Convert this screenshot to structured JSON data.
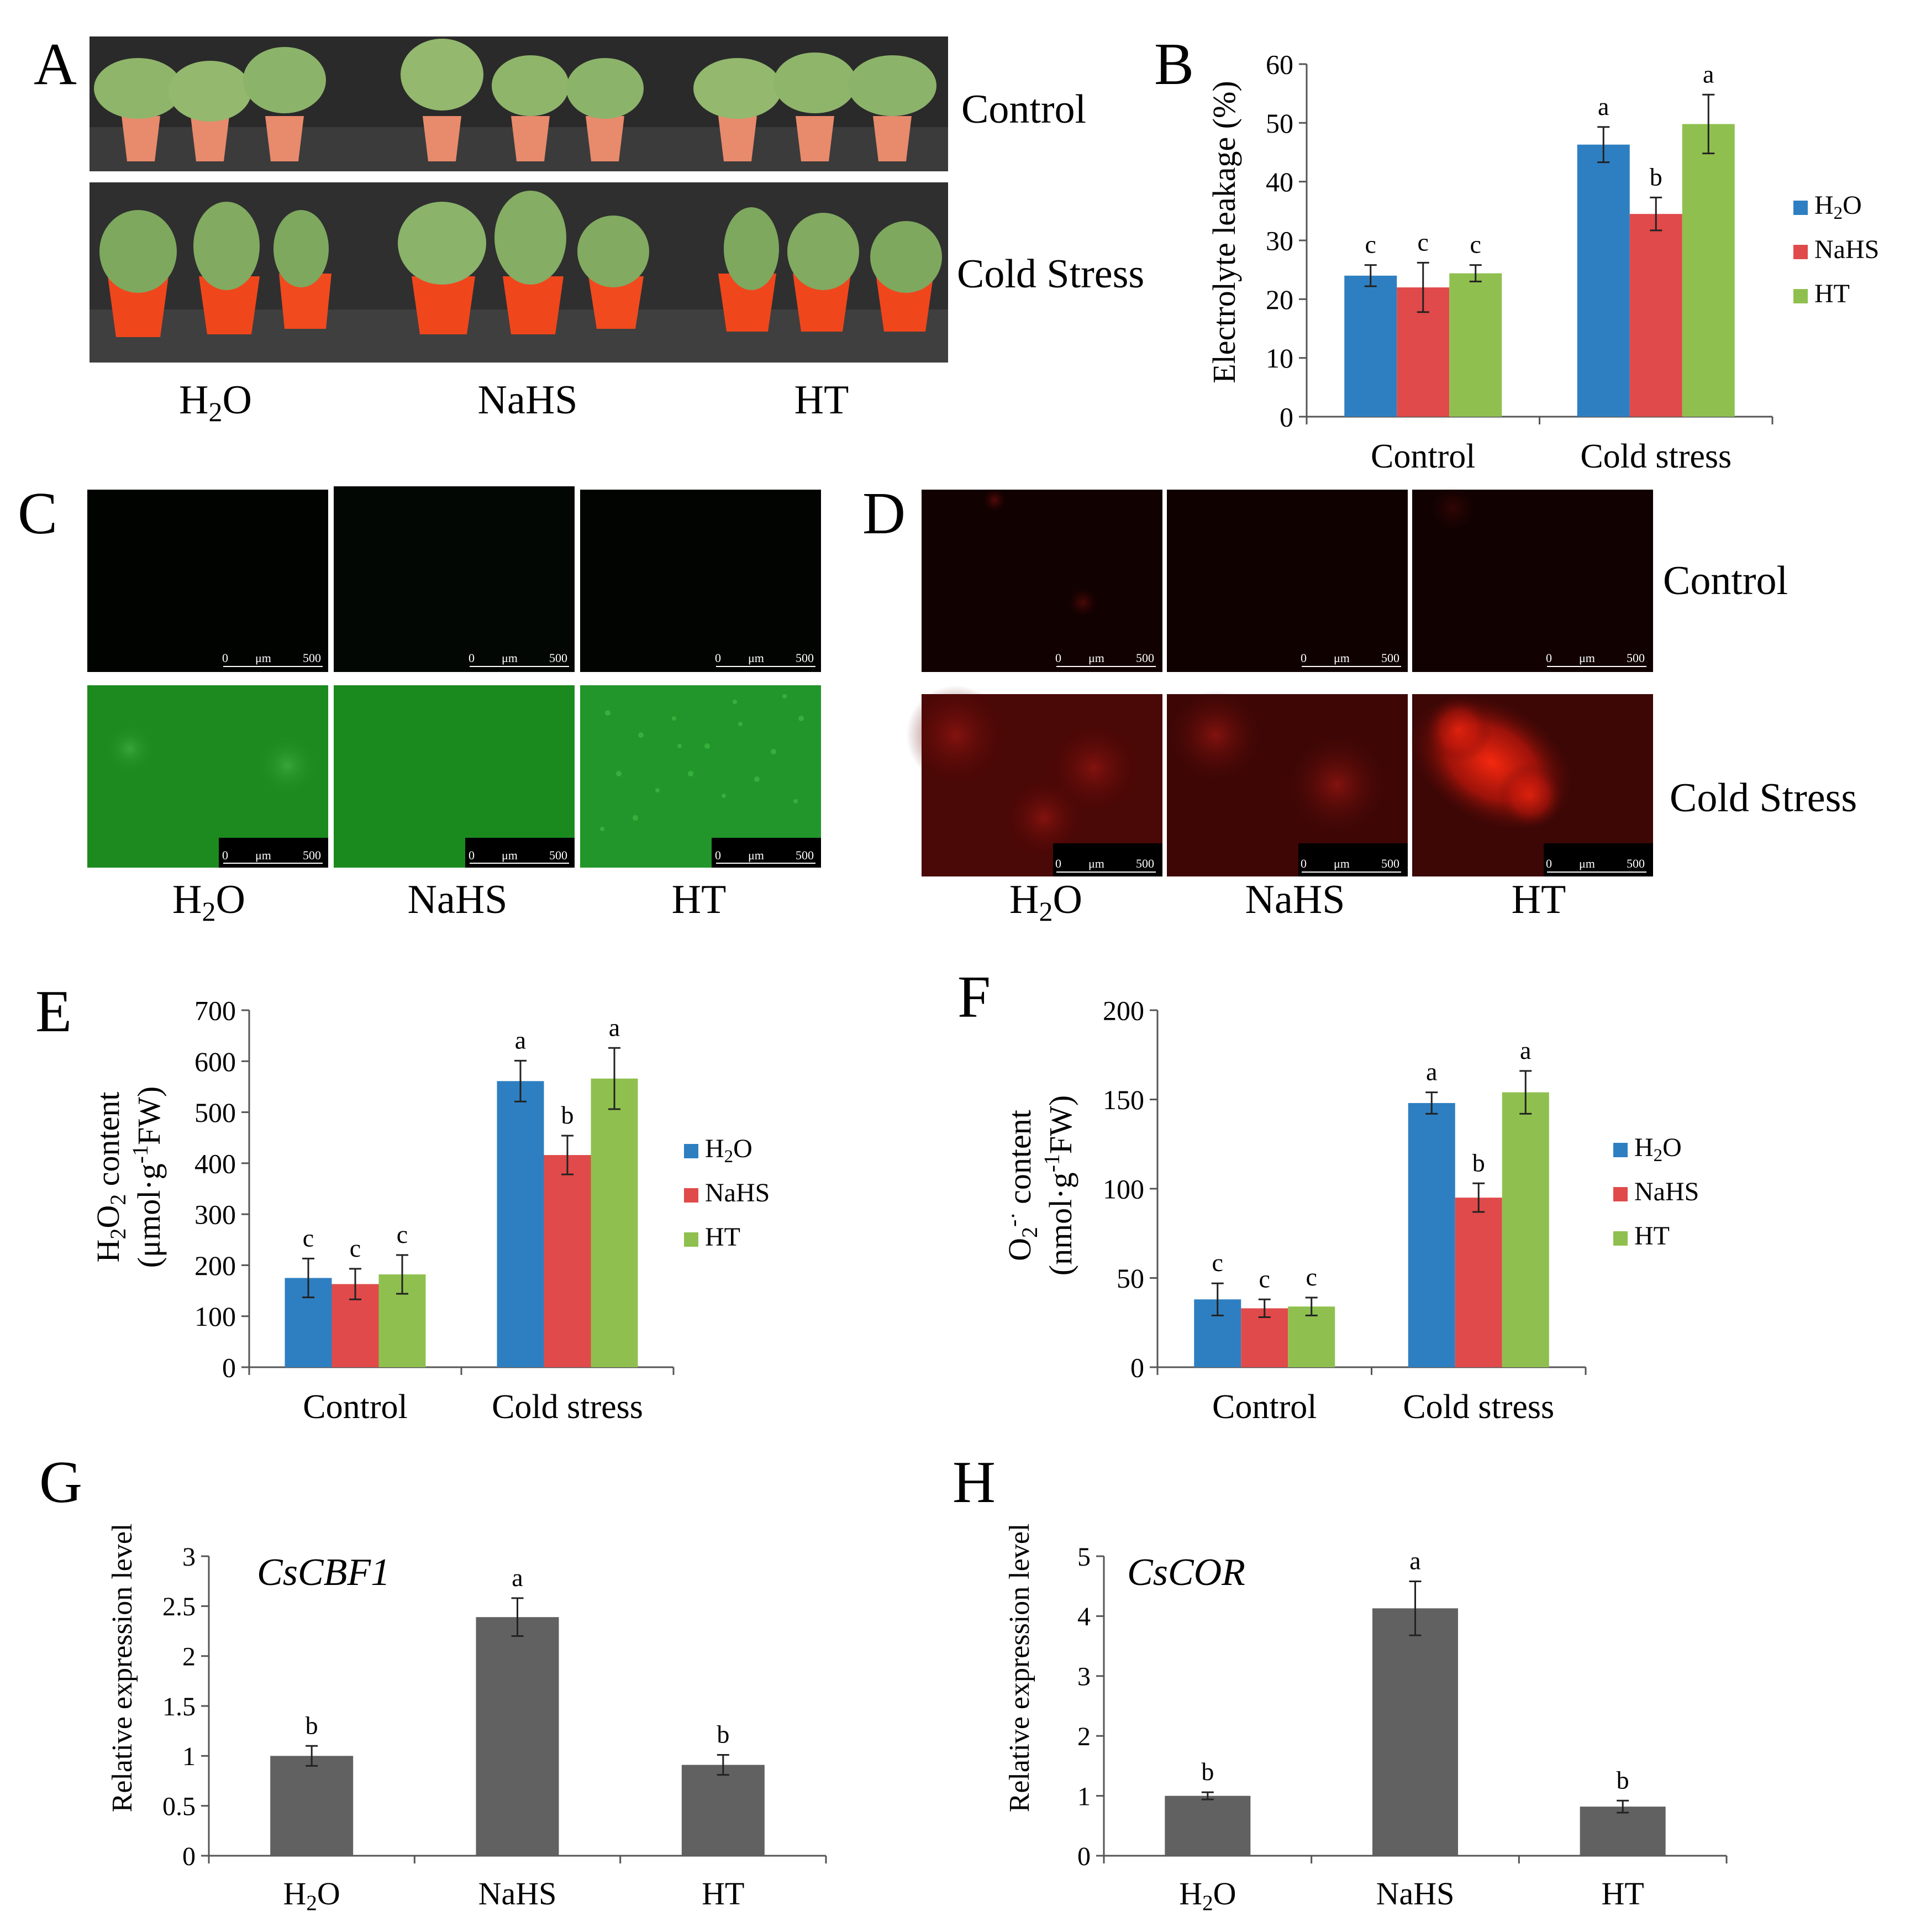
{
  "panels": {
    "A": {
      "letter": "A",
      "row_labels": [
        "Control",
        "Cold Stress"
      ],
      "treatments": [
        "H2O",
        "NaHS",
        "HT"
      ]
    },
    "C": {
      "letter": "C",
      "treatments": [
        "H2O",
        "NaHS",
        "HT"
      ],
      "scale": {
        "zero": "0",
        "unit": "μm",
        "max": "500"
      }
    },
    "D": {
      "letter": "D",
      "treatments": [
        "H2O",
        "NaHS",
        "HT"
      ],
      "row_labels": [
        "Control",
        "Cold Stress"
      ],
      "scale": {
        "zero": "0",
        "unit": "μm",
        "max": "500"
      }
    }
  },
  "chart_data": [
    {
      "panel": "B",
      "type": "bar",
      "ylabel": "Electrolyte leakage (%)",
      "ylim": [
        0,
        60
      ],
      "yticks": [
        0,
        10,
        20,
        30,
        40,
        50,
        60
      ],
      "categories": [
        "Control",
        "Cold stress"
      ],
      "legend": "right",
      "series": [
        {
          "name": "H2O",
          "color": "#2e7fc1",
          "values": [
            24,
            46.3
          ],
          "errors": [
            1.8,
            3.0
          ],
          "letters": [
            "c",
            "a"
          ]
        },
        {
          "name": "NaHS",
          "color": "#e04a4a",
          "values": [
            22,
            34.5
          ],
          "errors": [
            4.2,
            2.8
          ],
          "letters": [
            "c",
            "b"
          ]
        },
        {
          "name": "HT",
          "color": "#8fc04f",
          "values": [
            24.4,
            49.8
          ],
          "errors": [
            1.4,
            5.0
          ],
          "letters": [
            "c",
            "a"
          ]
        }
      ]
    },
    {
      "panel": "E",
      "type": "bar",
      "ylabel_line1": "H2O2 content",
      "ylabel_line2": "(μmol·g-1FW)",
      "ylim": [
        0,
        700
      ],
      "yticks": [
        0,
        100,
        200,
        300,
        400,
        500,
        600,
        700
      ],
      "categories": [
        "Control",
        "Cold stress"
      ],
      "legend": "right",
      "series": [
        {
          "name": "H2O",
          "color": "#2e7fc1",
          "values": [
            175,
            561
          ],
          "errors": [
            38,
            40
          ],
          "letters": [
            "c",
            "a"
          ]
        },
        {
          "name": "NaHS",
          "color": "#e04a4a",
          "values": [
            163,
            416
          ],
          "errors": [
            30,
            38
          ],
          "letters": [
            "c",
            "b"
          ]
        },
        {
          "name": "HT",
          "color": "#8fc04f",
          "values": [
            182,
            566
          ],
          "errors": [
            38,
            60
          ],
          "letters": [
            "c",
            "a"
          ]
        }
      ]
    },
    {
      "panel": "F",
      "type": "bar",
      "ylabel_line1": "O2-· content",
      "ylabel_line2": "(nmol·g-1FW)",
      "ylim": [
        0,
        200
      ],
      "yticks": [
        0,
        50,
        100,
        150,
        200
      ],
      "categories": [
        "Control",
        "Cold stress"
      ],
      "legend": "right",
      "series": [
        {
          "name": "H2O",
          "color": "#2e7fc1",
          "values": [
            38,
            148
          ],
          "errors": [
            9,
            6
          ],
          "letters": [
            "c",
            "a"
          ]
        },
        {
          "name": "NaHS",
          "color": "#e04a4a",
          "values": [
            33,
            95
          ],
          "errors": [
            5,
            8
          ],
          "letters": [
            "c",
            "b"
          ]
        },
        {
          "name": "HT",
          "color": "#8fc04f",
          "values": [
            34,
            154
          ],
          "errors": [
            5,
            12
          ],
          "letters": [
            "c",
            "a"
          ]
        }
      ]
    },
    {
      "panel": "G",
      "type": "bar",
      "title": "CsCBF1",
      "ylabel": "Relative expression level",
      "ylim": [
        0,
        3
      ],
      "yticks": [
        "0",
        "0.5",
        "1",
        "1.5",
        "2",
        "2.5",
        "3"
      ],
      "categories": [
        "H2O",
        "NaHS",
        "HT"
      ],
      "color": "#616161",
      "values": [
        1.0,
        2.39,
        0.91
      ],
      "errors": [
        0.1,
        0.19,
        0.1
      ],
      "letters": [
        "b",
        "a",
        "b"
      ]
    },
    {
      "panel": "H",
      "type": "bar",
      "title": "CsCOR",
      "ylabel": "Relative expression level",
      "ylim": [
        0,
        5
      ],
      "yticks": [
        "0",
        "1",
        "2",
        "3",
        "4",
        "5"
      ],
      "categories": [
        "H2O",
        "NaHS",
        "HT"
      ],
      "color": "#616161",
      "values": [
        1.0,
        4.13,
        0.82
      ],
      "errors": [
        0.06,
        0.45,
        0.1
      ],
      "letters": [
        "b",
        "a",
        "b"
      ]
    }
  ]
}
